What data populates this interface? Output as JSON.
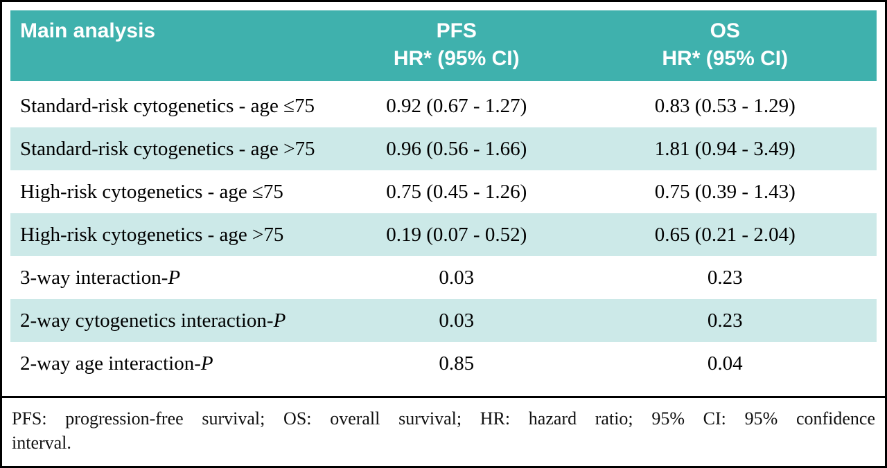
{
  "colors": {
    "header_bg": "#3fb1ad",
    "header_text": "#ffffff",
    "alt_row_bg": "#cce9e8",
    "frame_border": "#000000"
  },
  "table": {
    "header": {
      "main": "Main analysis",
      "pfs_line1": "PFS",
      "pfs_line2": "HR* (95% CI)",
      "os_line1": "OS",
      "os_line2": "HR* (95% CI)"
    },
    "rows": [
      {
        "label": "Standard-risk cytogenetics - age ≤75",
        "pfs": "0.92 (0.67 - 1.27)",
        "os": "0.83 (0.53 - 1.29)"
      },
      {
        "label": "Standard-risk cytogenetics - age >75",
        "pfs": "0.96 (0.56 - 1.66)",
        "os": "1.81 (0.94 - 3.49)"
      },
      {
        "label": "High-risk cytogenetics - age ≤75",
        "pfs": "0.75 (0.45 - 1.26)",
        "os": "0.75 (0.39 - 1.43)"
      },
      {
        "label": "High-risk cytogenetics - age >75",
        "pfs": "0.19 (0.07 - 0.52)",
        "os": "0.65 (0.21 - 2.04)"
      },
      {
        "label": "3-way interaction-",
        "label_italic": "P",
        "pfs": "0.03",
        "os": "0.23"
      },
      {
        "label": "2-way cytogenetics interaction-",
        "label_italic": "P",
        "pfs": "0.03",
        "os": "0.23"
      },
      {
        "label": "2-way age interaction-",
        "label_italic": "P",
        "pfs": "0.85",
        "os": "0.04"
      }
    ],
    "footnote_line1": "PFS: progression-free survival; OS: overall survival; HR: hazard ratio; 95% CI: 95% confidence",
    "footnote_line2": "interval."
  }
}
